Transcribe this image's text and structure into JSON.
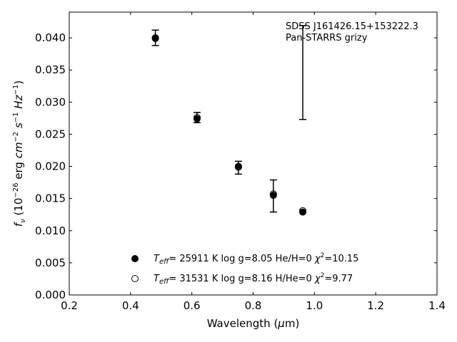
{
  "chart_data": {
    "type": "scatter",
    "title": "",
    "xlabel": "Wavelength (μm)",
    "ylabel": "f_ν (10^−26 erg cm^−2 s^−1 Hz^−1)",
    "xlim": [
      0.2,
      1.4
    ],
    "ylim": [
      0.0,
      0.044
    ],
    "x_ticks": [
      "0.2",
      "0.4",
      "0.6",
      "0.8",
      "1.0",
      "1.2",
      "1.4"
    ],
    "y_ticks": [
      "0.000",
      "0.005",
      "0.010",
      "0.015",
      "0.020",
      "0.025",
      "0.030",
      "0.035",
      "0.040"
    ],
    "grid": false,
    "legend_position": "lower-center",
    "annotation": [
      "SDSS J161426.15+153222.3",
      "Pan-STARRS grizy"
    ],
    "observed": {
      "x": [
        0.481,
        0.617,
        0.752,
        0.866,
        0.962
      ],
      "y": [
        0.04,
        0.0276,
        0.0198,
        0.0154,
        0.0346
      ],
      "yerr": [
        0.0012,
        0.0008,
        0.001,
        0.0025,
        0.0073
      ]
    },
    "series": [
      {
        "name": "Teff= 25911 K  log g=8.05  He/H=0  χ2=10.15",
        "marker": "filled-circle",
        "x": [
          0.481,
          0.617,
          0.752,
          0.866,
          0.962
        ],
        "y": [
          0.0399,
          0.0274,
          0.0199,
          0.0155,
          0.0129
        ]
      },
      {
        "name": "Teff= 31531 K  log g=8.16  H/He=0  χ2=9.77",
        "marker": "open-circle",
        "x": [
          0.481,
          0.617,
          0.752,
          0.866,
          0.962
        ],
        "y": [
          0.04,
          0.0276,
          0.02,
          0.0157,
          0.0131
        ]
      }
    ]
  },
  "colors": {
    "marker": "#000000",
    "axes": "#000000",
    "background": "#ffffff"
  }
}
